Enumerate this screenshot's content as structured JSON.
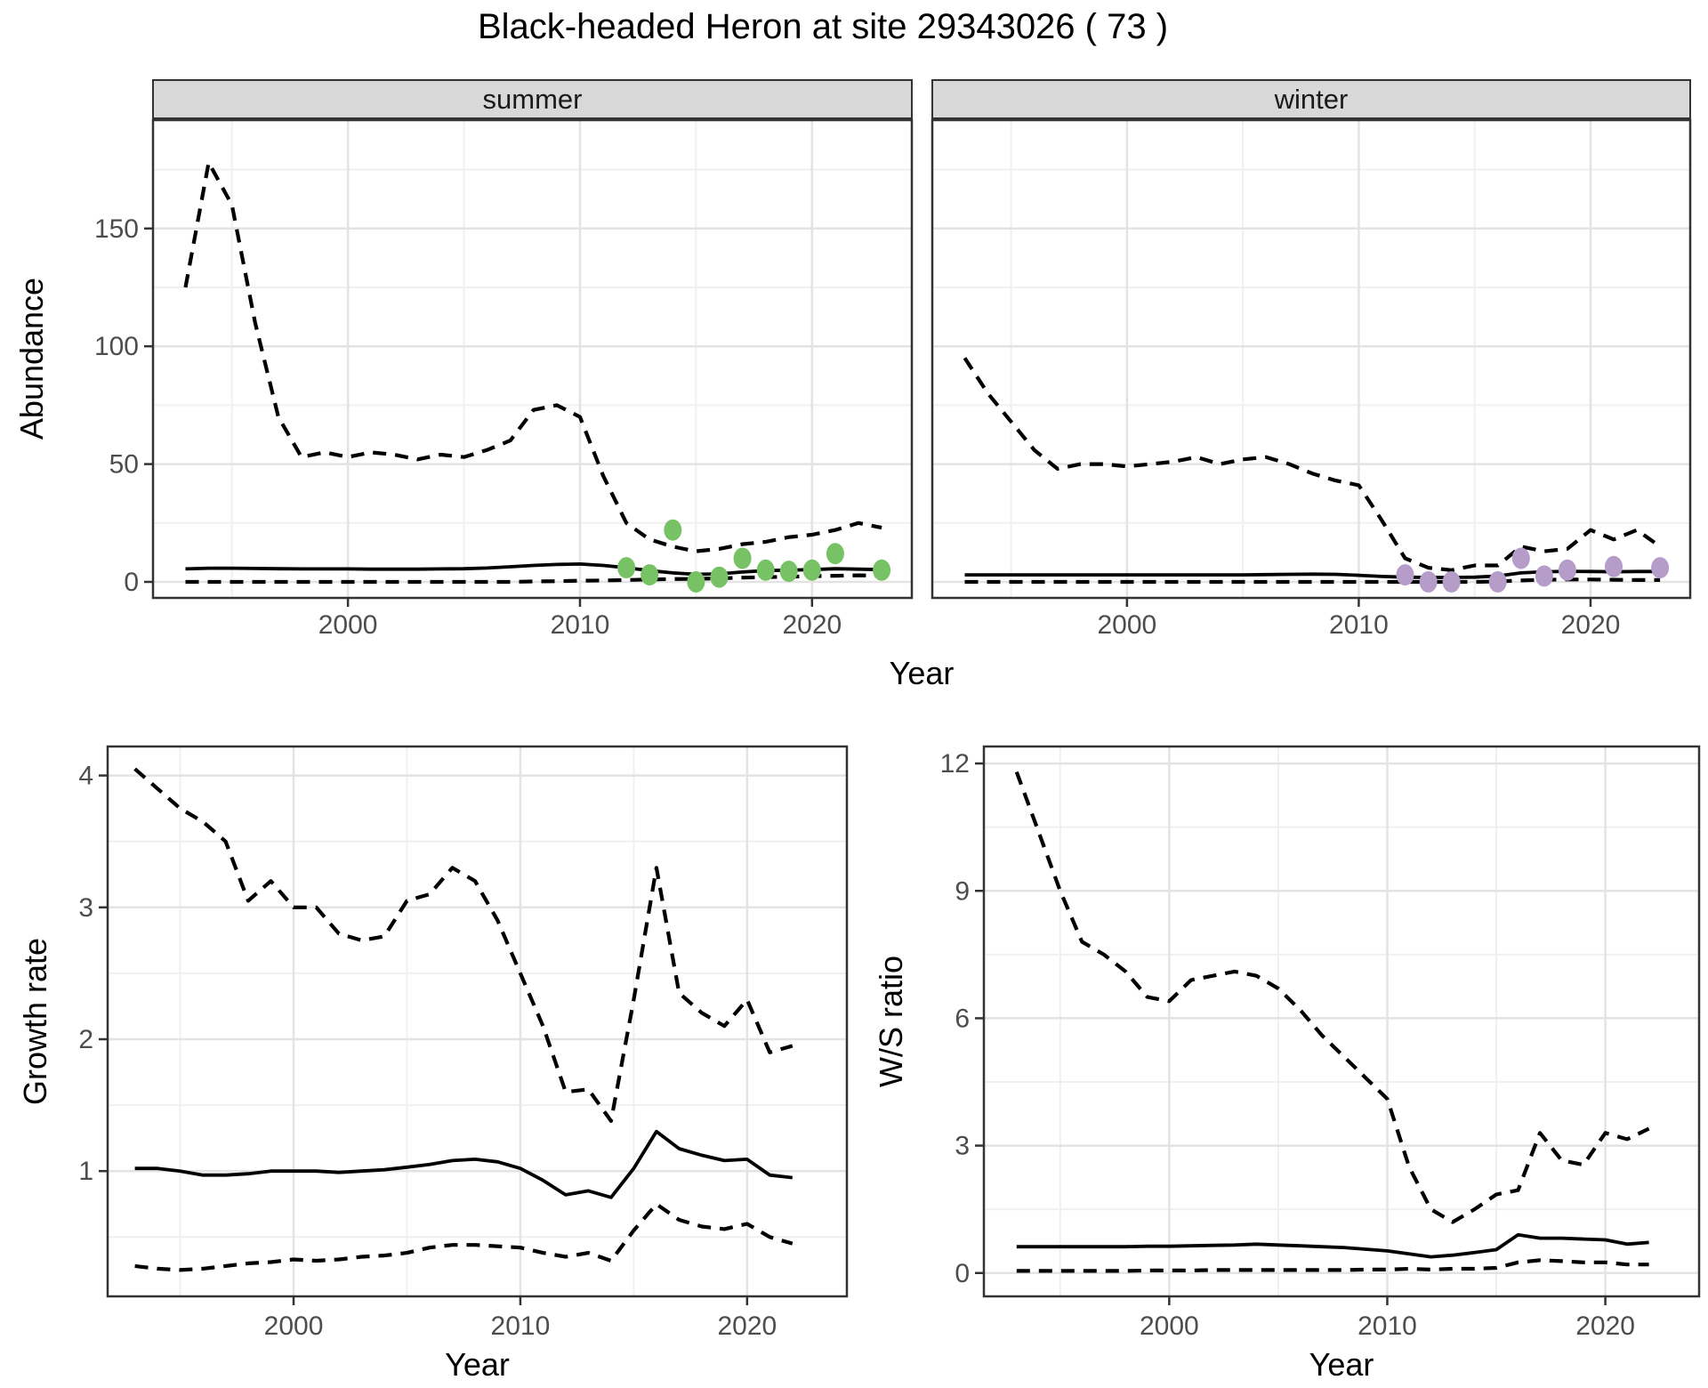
{
  "title": "Black-headed Heron at site 29343026 ( 73 )",
  "top_chart": {
    "xlabel": "Year",
    "ylabel": "Abundance",
    "facets": [
      "summer",
      "winter"
    ]
  },
  "bottom_left_chart": {
    "xlabel": "Year",
    "ylabel": "Growth rate"
  },
  "bottom_right_chart": {
    "xlabel": "Year",
    "ylabel": "W/S ratio"
  },
  "colors": {
    "summer_points": "#76C264",
    "winter_points": "#B59CC9",
    "line": "#000000",
    "strip_fill": "#D8D8D8",
    "panel_border": "#333333",
    "grid_major": "#E3E3E3",
    "grid_minor": "#F0F0F0",
    "axis_text": "#4D4D4D"
  },
  "chart_data": [
    {
      "type": "line",
      "facet": "summer",
      "xlabel": "Year",
      "ylabel": "Abundance",
      "x": [
        1993,
        1994,
        1995,
        1996,
        1997,
        1998,
        1999,
        2000,
        2001,
        2002,
        2003,
        2004,
        2005,
        2006,
        2007,
        2008,
        2009,
        2010,
        2011,
        2012,
        2013,
        2014,
        2015,
        2016,
        2017,
        2018,
        2019,
        2020,
        2021,
        2022,
        2023
      ],
      "series": [
        {
          "name": "upper 95% CI",
          "style": "dashed",
          "values": [
            125,
            178,
            160,
            110,
            70,
            53,
            55,
            53,
            55,
            54,
            52,
            54,
            53,
            56,
            60,
            73,
            75,
            70,
            45,
            25,
            18,
            15,
            13,
            14,
            16,
            17,
            19,
            20,
            22,
            25,
            23
          ]
        },
        {
          "name": "median",
          "style": "solid",
          "values": [
            5.5,
            5.8,
            5.8,
            5.7,
            5.6,
            5.5,
            5.5,
            5.5,
            5.4,
            5.4,
            5.4,
            5.5,
            5.6,
            5.9,
            6.4,
            7.0,
            7.4,
            7.6,
            7.0,
            6.0,
            4.8,
            3.8,
            3.2,
            3.4,
            4.2,
            4.8,
            5.0,
            5.2,
            5.6,
            5.4,
            5.2
          ]
        },
        {
          "name": "lower 95% CI",
          "style": "dashed",
          "values": [
            0,
            0,
            0,
            0,
            0,
            0,
            0,
            0,
            0,
            0,
            0,
            0,
            0,
            0,
            0,
            0.2,
            0.3,
            0.5,
            0.6,
            0.8,
            1.0,
            1.2,
            1.3,
            1.5,
            1.8,
            2.0,
            2.2,
            2.4,
            2.6,
            2.8,
            2.6
          ]
        }
      ],
      "points": {
        "name": "observed counts",
        "color_key": "summer_points",
        "x": [
          2012,
          2013,
          2014,
          2015,
          2016,
          2017,
          2018,
          2019,
          2020,
          2021,
          2023
        ],
        "y": [
          6,
          3,
          22,
          0,
          2,
          10,
          5,
          4.5,
          5,
          12,
          5
        ]
      },
      "xlim": [
        1991.6,
        2024.3
      ],
      "ylim": [
        -6.8,
        196
      ],
      "xticks": [
        2000,
        2010,
        2020
      ],
      "xminor": [
        1995,
        2005,
        2015
      ],
      "yticks": [
        0,
        50,
        100,
        150
      ],
      "yminor": [
        25,
        75,
        125,
        175
      ],
      "grid": true,
      "legend": "none"
    },
    {
      "type": "line",
      "facet": "winter",
      "xlabel": "Year",
      "ylabel": "Abundance",
      "x": [
        1993,
        1994,
        1995,
        1996,
        1997,
        1998,
        1999,
        2000,
        2001,
        2002,
        2003,
        2004,
        2005,
        2006,
        2007,
        2008,
        2009,
        2010,
        2011,
        2012,
        2013,
        2014,
        2015,
        2016,
        2017,
        2018,
        2019,
        2020,
        2021,
        2022,
        2023
      ],
      "series": [
        {
          "name": "upper 95% CI",
          "style": "dashed",
          "values": [
            95,
            80,
            68,
            56,
            48,
            50,
            50,
            49,
            50,
            51,
            53,
            50,
            52,
            53,
            50,
            46,
            43,
            41,
            26,
            10,
            6,
            5,
            7,
            7,
            15,
            13,
            14,
            22,
            18,
            22,
            15
          ]
        },
        {
          "name": "median",
          "style": "solid",
          "values": [
            3,
            3,
            3,
            3,
            3,
            3,
            3,
            3,
            3,
            3,
            3,
            3,
            3,
            3.1,
            3.2,
            3.3,
            3.2,
            2.8,
            2.3,
            2.0,
            1.9,
            1.9,
            2.0,
            2.5,
            3.8,
            4.3,
            4.5,
            4.4,
            4.3,
            4.4,
            4.4
          ]
        },
        {
          "name": "lower 95% CI",
          "style": "dashed",
          "values": [
            0,
            0,
            0,
            0,
            0,
            0,
            0,
            0,
            0,
            0,
            0,
            0,
            0,
            0,
            0,
            0,
            0,
            0,
            0,
            0,
            0,
            0,
            0,
            0.2,
            0.6,
            0.9,
            1.0,
            1.0,
            0.9,
            0.8,
            0.8
          ]
        }
      ],
      "points": {
        "name": "observed counts",
        "color_key": "winter_points",
        "x": [
          2012,
          2013,
          2014,
          2016,
          2017,
          2018,
          2019,
          2021,
          2023
        ],
        "y": [
          3,
          0,
          0,
          0,
          10,
          2.5,
          5,
          6.5,
          6
        ]
      },
      "xlim": [
        1991.6,
        2024.3
      ],
      "ylim": [
        -6.8,
        196
      ],
      "xticks": [
        2000,
        2010,
        2020
      ],
      "xminor": [
        1995,
        2005,
        2015
      ],
      "yticks": [
        0,
        50,
        100,
        150
      ],
      "yminor": [
        25,
        75,
        125,
        175
      ],
      "grid": true,
      "legend": "none"
    },
    {
      "type": "line",
      "facet": null,
      "xlabel": "Year",
      "ylabel": "Growth rate",
      "x": [
        1993,
        1994,
        1995,
        1996,
        1997,
        1998,
        1999,
        2000,
        2001,
        2002,
        2003,
        2004,
        2005,
        2006,
        2007,
        2008,
        2009,
        2010,
        2011,
        2012,
        2013,
        2014,
        2015,
        2016,
        2017,
        2018,
        2019,
        2020,
        2021,
        2022
      ],
      "series": [
        {
          "name": "upper 95% CI",
          "style": "dashed",
          "values": [
            4.05,
            3.9,
            3.75,
            3.65,
            3.5,
            3.05,
            3.2,
            3.0,
            3.0,
            2.8,
            2.75,
            2.78,
            3.05,
            3.1,
            3.3,
            3.2,
            2.9,
            2.5,
            2.1,
            1.6,
            1.62,
            1.38,
            2.3,
            3.3,
            2.35,
            2.2,
            2.1,
            2.3,
            1.9,
            1.95
          ]
        },
        {
          "name": "median",
          "style": "solid",
          "values": [
            1.02,
            1.02,
            1.0,
            0.97,
            0.97,
            0.98,
            1.0,
            1.0,
            1.0,
            0.99,
            1.0,
            1.01,
            1.03,
            1.05,
            1.08,
            1.09,
            1.07,
            1.02,
            0.93,
            0.82,
            0.85,
            0.8,
            1.02,
            1.3,
            1.17,
            1.12,
            1.08,
            1.09,
            0.97,
            0.95
          ]
        },
        {
          "name": "lower 95% CI",
          "style": "dashed",
          "values": [
            0.28,
            0.26,
            0.25,
            0.26,
            0.28,
            0.3,
            0.31,
            0.33,
            0.32,
            0.33,
            0.35,
            0.36,
            0.38,
            0.42,
            0.44,
            0.44,
            0.43,
            0.42,
            0.38,
            0.35,
            0.38,
            0.32,
            0.55,
            0.75,
            0.63,
            0.58,
            0.56,
            0.6,
            0.5,
            0.45
          ]
        }
      ],
      "points": null,
      "xlim": [
        1991.8,
        2024.4
      ],
      "ylim": [
        0.05,
        4.22
      ],
      "xticks": [
        2000,
        2010,
        2020
      ],
      "xminor": [
        1995,
        2005,
        2015
      ],
      "yticks": [
        1,
        2,
        3,
        4
      ],
      "yminor": [
        0.5,
        1.5,
        2.5,
        3.5
      ],
      "grid": true,
      "legend": "none"
    },
    {
      "type": "line",
      "facet": null,
      "xlabel": "Year",
      "ylabel": "W/S ratio",
      "x": [
        1993,
        1994,
        1995,
        1996,
        1997,
        1998,
        1999,
        2000,
        2001,
        2002,
        2003,
        2004,
        2005,
        2006,
        2007,
        2008,
        2009,
        2010,
        2011,
        2012,
        2013,
        2014,
        2015,
        2016,
        2017,
        2018,
        2019,
        2020,
        2021,
        2022
      ],
      "series": [
        {
          "name": "upper 95% CI",
          "style": "dashed",
          "values": [
            11.8,
            10.4,
            9.0,
            7.8,
            7.5,
            7.1,
            6.5,
            6.4,
            6.9,
            7.0,
            7.1,
            7.0,
            6.7,
            6.2,
            5.6,
            5.1,
            4.6,
            4.1,
            2.5,
            1.5,
            1.2,
            1.5,
            1.85,
            1.95,
            3.3,
            2.65,
            2.55,
            3.3,
            3.15,
            3.4
          ]
        },
        {
          "name": "median",
          "style": "solid",
          "values": [
            0.62,
            0.62,
            0.62,
            0.62,
            0.62,
            0.62,
            0.63,
            0.63,
            0.64,
            0.65,
            0.66,
            0.68,
            0.66,
            0.64,
            0.62,
            0.6,
            0.56,
            0.52,
            0.45,
            0.38,
            0.42,
            0.48,
            0.55,
            0.9,
            0.82,
            0.82,
            0.8,
            0.78,
            0.68,
            0.72
          ]
        },
        {
          "name": "lower 95% CI",
          "style": "dashed",
          "values": [
            0.05,
            0.05,
            0.05,
            0.05,
            0.05,
            0.05,
            0.06,
            0.06,
            0.06,
            0.07,
            0.07,
            0.07,
            0.07,
            0.07,
            0.07,
            0.07,
            0.08,
            0.08,
            0.1,
            0.08,
            0.1,
            0.1,
            0.12,
            0.25,
            0.3,
            0.28,
            0.25,
            0.25,
            0.2,
            0.2
          ]
        }
      ],
      "points": null,
      "xlim": [
        1991.5,
        2024.3
      ],
      "ylim": [
        -0.55,
        12.4
      ],
      "xticks": [
        2000,
        2010,
        2020
      ],
      "xminor": [
        1995,
        2005,
        2015
      ],
      "yticks": [
        0,
        3,
        6,
        9,
        12
      ],
      "yminor": [
        1.5,
        4.5,
        7.5,
        10.5
      ],
      "grid": true,
      "legend": "none"
    }
  ]
}
